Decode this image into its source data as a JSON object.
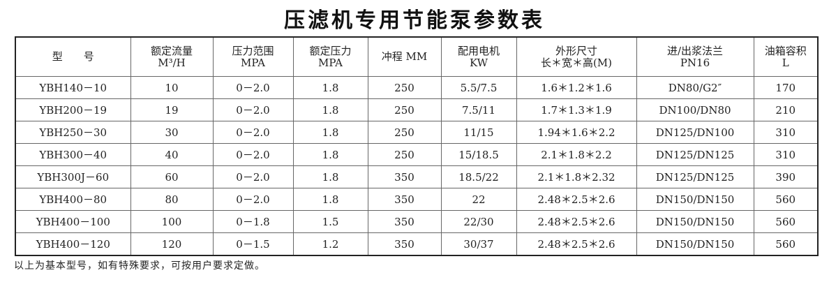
{
  "title": "压滤机专用节能泵参数表",
  "headers": [
    [
      "型　　号",
      ""
    ],
    [
      "额定流量",
      "M³/H"
    ],
    [
      "压力范围",
      "MPA"
    ],
    [
      "额定压力",
      "MPA"
    ],
    [
      "冲程 MM",
      ""
    ],
    [
      "配用电机",
      "KW"
    ],
    [
      "外形尺寸",
      "长＊宽＊高(M)"
    ],
    [
      "进/出浆法兰",
      "PN16"
    ],
    [
      "油箱容积",
      "L"
    ]
  ],
  "rows": [
    [
      "YBH140－10",
      "10",
      "0－2.0",
      "1.8",
      "250",
      "5.5/7.5",
      "1.6＊1.2＊1.6",
      "DN80/G2″",
      "170"
    ],
    [
      "YBH200－19",
      "19",
      "0－2.0",
      "1.8",
      "250",
      "7.5/11",
      "1.7＊1.3＊1.9",
      "DN100/DN80",
      "210"
    ],
    [
      "YBH250－30",
      "30",
      "0－2.0",
      "1.8",
      "250",
      "11/15",
      "1.94＊1.6＊2.2",
      "DN125/DN100",
      "310"
    ],
    [
      "YBH300－40",
      "40",
      "0－2.0",
      "1.8",
      "250",
      "15/18.5",
      "2.1＊1.8＊2.2",
      "DN125/DN125",
      "310"
    ],
    [
      "YBH300J－60",
      "60",
      "0－2.0",
      "1.8",
      "350",
      "18.5/22",
      "2.1＊1.8＊2.32",
      "DN125/DN125",
      "390"
    ],
    [
      "YBH400－80",
      "80",
      "0－2.0",
      "1.8",
      "350",
      "22",
      "2.48＊2.5＊2.6",
      "DN150/DN150",
      "560"
    ],
    [
      "YBH400－100",
      "100",
      "0－1.8",
      "1.5",
      "350",
      "22/30",
      "2.48＊2.5＊2.6",
      "DN150/DN150",
      "560"
    ],
    [
      "YBH400－120",
      "120",
      "0－1.5",
      "1.2",
      "350",
      "30/37",
      "2.48＊2.5＊2.6",
      "DN150/DN150",
      "560"
    ]
  ],
  "note": "以上为基本型号，如有特殊要求，可按用户要求定做。"
}
